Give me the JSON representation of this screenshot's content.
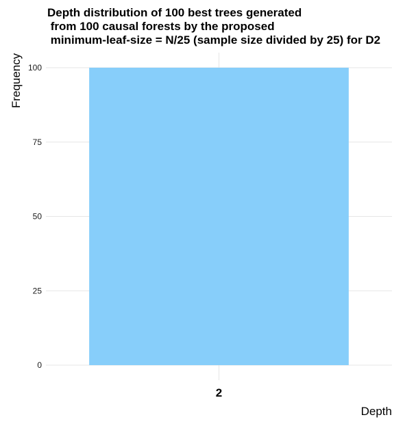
{
  "chart_data": {
    "type": "bar",
    "title": "Depth distribution of 100 best trees generated\n from 100 causal forests by the proposed\n minimum-leaf-size = N/25 (sample size divided by 25) for D2",
    "xlabel": "Depth",
    "ylabel": "Frequency",
    "categories": [
      "2"
    ],
    "values": [
      100
    ],
    "ylim": [
      0,
      100
    ],
    "yticks": [
      0,
      25,
      50,
      75,
      100
    ],
    "grid": true,
    "legend": "none",
    "bar_color": "#87CEFA",
    "grid_color": "#E5E5E5"
  }
}
